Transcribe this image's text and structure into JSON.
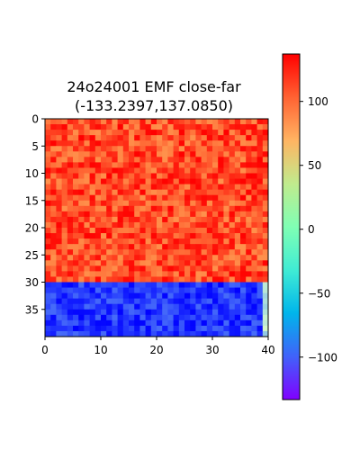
{
  "chart_data": {
    "type": "heatmap",
    "title_line1": "24o24001 EMF close-far",
    "title_line2": "(-133.2397,137.0850)",
    "value_range": [
      -133.2397,
      137.085
    ],
    "grid_size": {
      "rows": 40,
      "cols": 40
    },
    "x_ticks": [
      "0",
      "10",
      "20",
      "30",
      "40"
    ],
    "x_tick_values": [
      0,
      10,
      20,
      30,
      40
    ],
    "y_ticks": [
      "0",
      "5",
      "10",
      "15",
      "20",
      "25",
      "30",
      "35"
    ],
    "y_tick_values": [
      0,
      5,
      10,
      15,
      20,
      25,
      30,
      35
    ],
    "colorbar": {
      "colormap": "rainbow",
      "ticks": [
        "100",
        "50",
        "0",
        "−50",
        "−100"
      ],
      "tick_values": [
        100,
        50,
        0,
        -50,
        -100
      ]
    },
    "regions": [
      {
        "rows": [
          0,
          29
        ],
        "cols": [
          0,
          39
        ],
        "approx_value_range": [
          85,
          137
        ]
      },
      {
        "rows": [
          30,
          39
        ],
        "cols": [
          0,
          38
        ],
        "approx_value_range": [
          -133,
          -95
        ]
      },
      {
        "rows": [
          30,
          39
        ],
        "cols": [
          39,
          39
        ],
        "approx_value_range": [
          -60,
          -20
        ]
      }
    ]
  }
}
